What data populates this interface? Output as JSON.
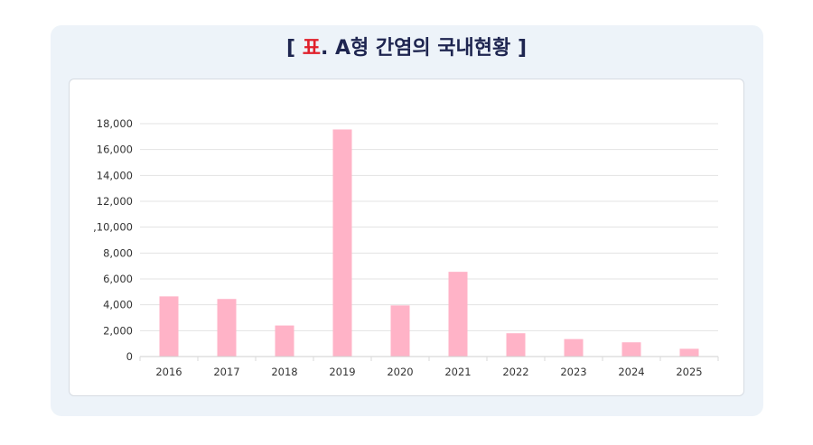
{
  "title": {
    "open_bracket": "[",
    "accent": "표",
    "rest": ". A형 간염의 국내현황",
    "close_bracket": "]"
  },
  "colors": {
    "bar": "#ffb3c7",
    "accent": "#e0202b",
    "title": "#1e2550",
    "panel": "#edf3f9",
    "grid": "#e3e3e3"
  },
  "chart_data": {
    "type": "bar",
    "title": "",
    "xlabel": "",
    "ylabel": "",
    "categories": [
      "2016",
      "2017",
      "2018",
      "2019",
      "2020",
      "2021",
      "2022",
      "2023",
      "2024",
      "2025"
    ],
    "values": [
      4650,
      4450,
      2400,
      17550,
      3950,
      6550,
      1800,
      1350,
      1100,
      600
    ],
    "ylim": [
      0,
      18000
    ],
    "yticks": [
      0,
      2000,
      4000,
      6000,
      8000,
      10000,
      12000,
      14000,
      16000,
      18000
    ],
    "ytick_labels": [
      "0",
      "2,000",
      "4,000",
      "6,000",
      "8,000",
      ",10,000",
      "12,000",
      "14,000",
      "16,000",
      "18,000"
    ],
    "grid": true,
    "legend": "none"
  }
}
